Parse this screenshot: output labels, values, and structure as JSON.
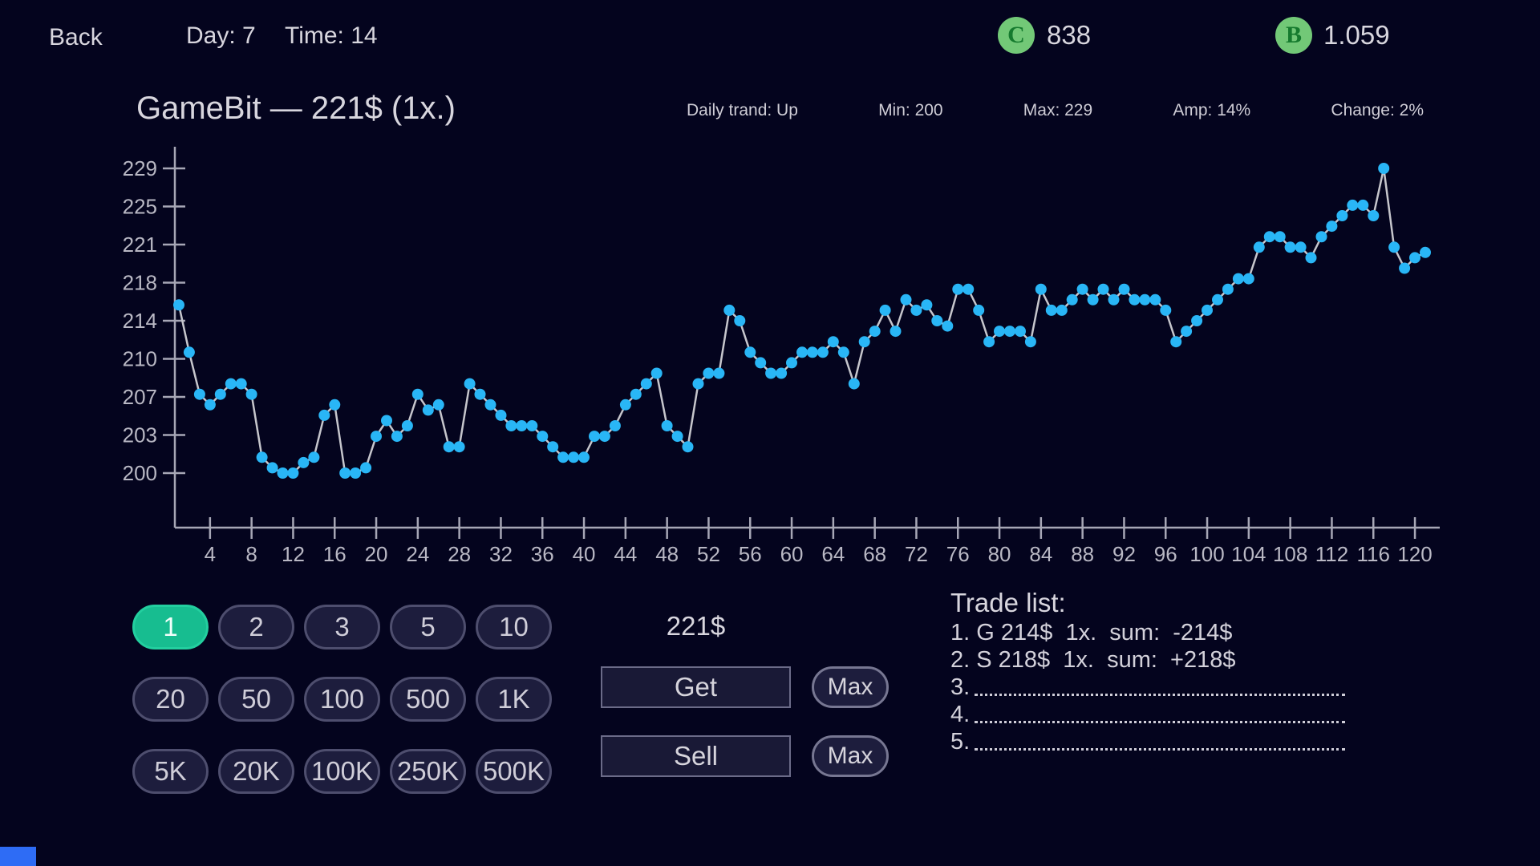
{
  "top_bar": {
    "back_label": "Back",
    "day_label": "Day: 7",
    "time_label": "Time: 14",
    "coin_c": {
      "letter": "C",
      "value": "838"
    },
    "coin_b": {
      "letter": "B",
      "value": "1.059"
    }
  },
  "header": {
    "title": "GameBit — 221$ (1x.)",
    "stats": [
      "Daily trand: Up",
      "Min: 200",
      "Max: 229",
      "Amp: 14%",
      "Change: 2%"
    ]
  },
  "chart_data": {
    "type": "line",
    "title": "GameBit price history",
    "x_start": 1,
    "x": "1..121 step 1",
    "values": [
      216,
      211.5,
      207.5,
      206.5,
      207.5,
      208.5,
      208.5,
      207.5,
      201.5,
      200.5,
      200,
      200,
      201,
      201.5,
      205.5,
      206.5,
      200,
      200,
      200.5,
      203.5,
      205,
      203.5,
      204.5,
      207.5,
      206,
      206.5,
      202.5,
      202.5,
      208.5,
      207.5,
      206.5,
      205.5,
      204.5,
      204.5,
      204.5,
      203.5,
      202.5,
      201.5,
      201.5,
      201.5,
      203.5,
      203.5,
      204.5,
      206.5,
      207.5,
      208.5,
      209.5,
      204.5,
      203.5,
      202.5,
      208.5,
      209.5,
      209.5,
      215.5,
      214.5,
      211.5,
      210.5,
      209.5,
      209.5,
      210.5,
      211.5,
      211.5,
      211.5,
      212.5,
      211.5,
      208.5,
      212.5,
      213.5,
      215.5,
      213.5,
      216.5,
      215.5,
      216,
      214.5,
      214,
      217.5,
      217.5,
      215.5,
      212.5,
      213.5,
      213.5,
      213.5,
      212.5,
      217.5,
      215.5,
      215.5,
      216.5,
      217.5,
      216.5,
      217.5,
      216.5,
      217.5,
      216.5,
      216.5,
      216.5,
      215.5,
      212.5,
      213.5,
      214.5,
      215.5,
      216.5,
      217.5,
      218.5,
      218.5,
      221.5,
      222.5,
      222.5,
      221.5,
      221.5,
      220.5,
      222.5,
      223.5,
      224.5,
      225.5,
      225.5,
      224.5,
      229,
      221.5,
      219.5,
      220.5,
      221
    ],
    "y_tick_labels": [
      229,
      225,
      221,
      218,
      214,
      210,
      207,
      203,
      200
    ],
    "x_tick_values": [
      4,
      8,
      12,
      16,
      20,
      24,
      28,
      32,
      36,
      40,
      44,
      48,
      52,
      56,
      60,
      64,
      68,
      72,
      76,
      80,
      84,
      88,
      92,
      96,
      100,
      104,
      108,
      112,
      116,
      120
    ],
    "ylim": [
      200,
      229
    ],
    "xlabel": "",
    "ylabel": "",
    "grid": false,
    "legend": "none",
    "line_color": "#c6c6cc",
    "point_color": "#29b6f6",
    "axis_color": "#a7a7b6"
  },
  "controls": {
    "amount_rows": [
      [
        "1",
        "2",
        "3",
        "5",
        "10"
      ],
      [
        "20",
        "50",
        "100",
        "500",
        "1K"
      ],
      [
        "5K",
        "20K",
        "100K",
        "250K",
        "500K"
      ]
    ],
    "selected_amount": "1",
    "price": "221$",
    "get_label": "Get",
    "sell_label": "Sell",
    "max_label": "Max"
  },
  "trade_list": {
    "title": "Trade list:",
    "items": [
      "1. G 214$  1x.  sum:  -214$",
      "2. S 218$  1x.  sum:  +218$"
    ],
    "empty_items": [
      "3.",
      "4.",
      "5."
    ]
  },
  "colors": {
    "background": "#04041e",
    "accent_teal": "#17bd90",
    "point_blue": "#29b6f6",
    "coin_green": "#72c877",
    "bottom_box_blue": "#2e6cf5"
  }
}
